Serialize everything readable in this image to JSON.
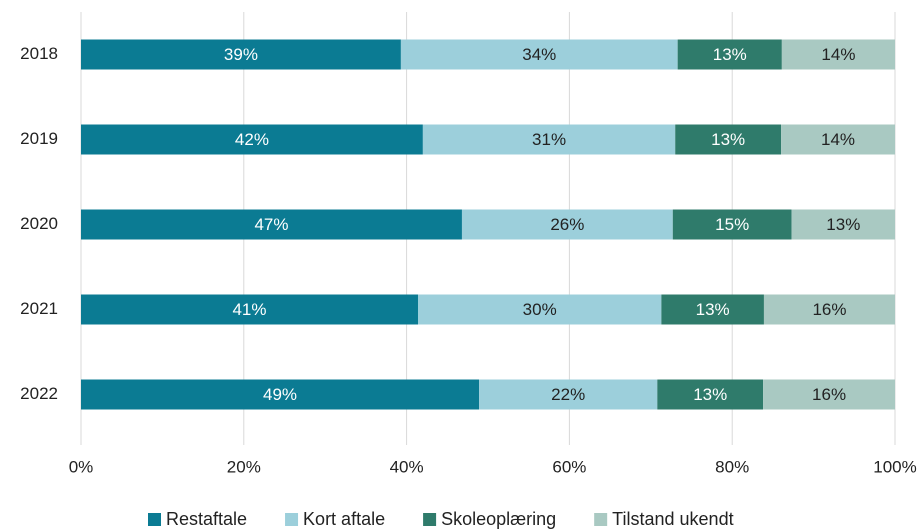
{
  "chart_data": {
    "type": "bar",
    "orientation": "horizontal",
    "stacked": true,
    "categories": [
      "2018",
      "2019",
      "2020",
      "2021",
      "2022"
    ],
    "series": [
      {
        "name": "Restaftale",
        "color": "#0b7b93",
        "label_color": "#ffffff",
        "values": [
          39.3,
          42.0,
          46.8,
          41.4,
          48.9
        ],
        "value_labels": [
          "39%",
          "42%",
          "47%",
          "41%",
          "49%"
        ]
      },
      {
        "name": "Kort aftale",
        "color": "#9ccfdb",
        "label_color": "#222222",
        "values": [
          34.0,
          31.0,
          25.9,
          29.9,
          21.9
        ],
        "value_labels": [
          "34%",
          "31%",
          "26%",
          "30%",
          "22%"
        ]
      },
      {
        "name": "Skoleoplæring",
        "color": "#2f7b6b",
        "label_color": "#ffffff",
        "values": [
          12.8,
          13.0,
          14.6,
          12.6,
          13.0
        ],
        "value_labels": [
          "13%",
          "13%",
          "15%",
          "13%",
          "13%"
        ]
      },
      {
        "name": "Tilstand ukendt",
        "color": "#a9c9c2",
        "label_color": "#222222",
        "values": [
          13.9,
          14.0,
          12.7,
          16.1,
          16.2
        ],
        "value_labels": [
          "14%",
          "14%",
          "13%",
          "16%",
          "16%"
        ]
      }
    ],
    "xlim": [
      0,
      100
    ],
    "xticks": [
      {
        "value": 0,
        "label": "0%"
      },
      {
        "value": 20,
        "label": "20%"
      },
      {
        "value": 40,
        "label": "40%"
      },
      {
        "value": 60,
        "label": "60%"
      },
      {
        "value": 80,
        "label": "80%"
      },
      {
        "value": 100,
        "label": "100%"
      }
    ],
    "grid": true,
    "legend": "bottom"
  }
}
